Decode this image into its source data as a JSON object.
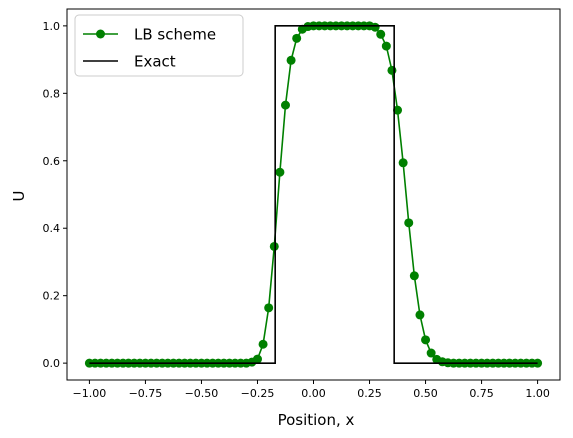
{
  "chart_data": {
    "type": "line",
    "xlabel": "Position, x",
    "ylabel": "U",
    "xlim": [
      -1.1,
      1.1
    ],
    "ylim": [
      -0.05,
      1.05
    ],
    "x_ticks": [
      -1.0,
      -0.75,
      -0.5,
      -0.25,
      0.0,
      0.25,
      0.5,
      0.75,
      1.0
    ],
    "x_tick_labels": [
      "−1.00",
      "−0.75",
      "−0.50",
      "−0.25",
      "0.00",
      "0.25",
      "0.50",
      "0.75",
      "1.00"
    ],
    "y_ticks": [
      0.0,
      0.2,
      0.4,
      0.6,
      0.8,
      1.0
    ],
    "y_tick_labels": [
      "0.0",
      "0.2",
      "0.4",
      "0.6",
      "0.8",
      "1.0"
    ],
    "grid": false,
    "legend_position": "top-left",
    "series": [
      {
        "name": "LB scheme",
        "color": "#008000",
        "marker": "circle",
        "x": [
          -1.0,
          -0.975,
          -0.95,
          -0.925,
          -0.9,
          -0.875,
          -0.85,
          -0.825,
          -0.8,
          -0.775,
          -0.75,
          -0.725,
          -0.7,
          -0.675,
          -0.65,
          -0.625,
          -0.6,
          -0.575,
          -0.55,
          -0.525,
          -0.5,
          -0.475,
          -0.45,
          -0.425,
          -0.4,
          -0.375,
          -0.35,
          -0.325,
          -0.3,
          -0.275,
          -0.25,
          -0.225,
          -0.2,
          -0.175,
          -0.15,
          -0.125,
          -0.1,
          -0.075,
          -0.05,
          -0.025,
          0.0,
          0.025,
          0.05,
          0.075,
          0.1,
          0.125,
          0.15,
          0.175,
          0.2,
          0.225,
          0.25,
          0.275,
          0.3,
          0.325,
          0.35,
          0.375,
          0.4,
          0.425,
          0.45,
          0.475,
          0.5,
          0.525,
          0.55,
          0.575,
          0.6,
          0.625,
          0.65,
          0.675,
          0.7,
          0.725,
          0.75,
          0.775,
          0.8,
          0.825,
          0.85,
          0.875,
          0.9,
          0.925,
          0.95,
          0.975,
          1.0
        ],
        "y": [
          0.0,
          0.0,
          0.0,
          0.0,
          0.0,
          0.0,
          0.0,
          0.0,
          0.0,
          0.0,
          0.0,
          0.0,
          0.0,
          0.0,
          0.0,
          0.0,
          0.0,
          0.0,
          0.0,
          0.0,
          0.0,
          0.0,
          0.0,
          0.0,
          0.0,
          0.0,
          0.0,
          0.0,
          0.0,
          0.003,
          0.012,
          0.056,
          0.164,
          0.346,
          0.566,
          0.765,
          0.898,
          0.963,
          0.99,
          0.998,
          1.0,
          1.0,
          1.0,
          1.0,
          1.0,
          1.0,
          1.0,
          1.0,
          1.0,
          1.0,
          1.0,
          0.996,
          0.975,
          0.94,
          0.868,
          0.75,
          0.594,
          0.416,
          0.259,
          0.143,
          0.069,
          0.03,
          0.011,
          0.004,
          0.001,
          0.0,
          0.0,
          0.0,
          0.0,
          0.0,
          0.0,
          0.0,
          0.0,
          0.0,
          0.0,
          0.0,
          0.0,
          0.0,
          0.0,
          0.0,
          0.0
        ]
      },
      {
        "name": "Exact",
        "color": "#000000",
        "marker": "none",
        "x": [
          -1.0,
          -0.171,
          -0.171,
          0.36,
          0.36,
          1.0
        ],
        "y": [
          0.0,
          0.0,
          1.0,
          1.0,
          0.0,
          0.0
        ]
      }
    ]
  }
}
